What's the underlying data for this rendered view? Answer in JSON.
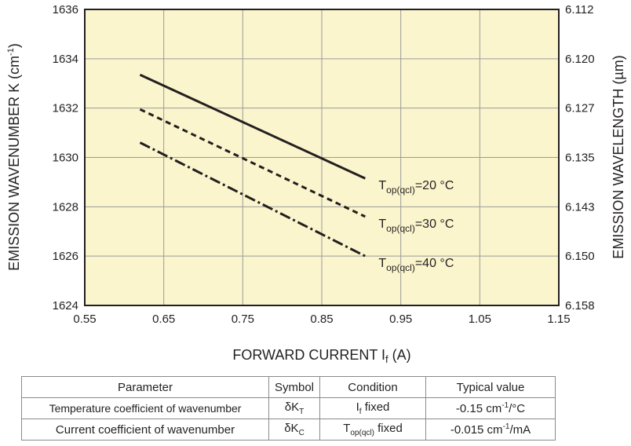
{
  "chart_data": {
    "type": "line",
    "xlabel": "FORWARD CURRENT",
    "xlabel_symbol": "I",
    "xlabel_symbol_sub": "f",
    "xlabel_unit": "(A)",
    "ylabel": "EMISSION WAVENUMBER K (cm",
    "ylabel_sup": "-1",
    "ylabel_end": ")",
    "y2label": "EMISSION WAVELENGTH (µm)",
    "xlim": [
      0.55,
      1.15
    ],
    "ylim": [
      1624,
      1636
    ],
    "xticks": [
      "0.55",
      "0.65",
      "0.75",
      "0.85",
      "0.95",
      "1.05",
      "1.15"
    ],
    "yticks": [
      "1624",
      "1626",
      "1628",
      "1630",
      "1632",
      "1634",
      "1636"
    ],
    "y2ticks": [
      "6.158",
      "6.150",
      "6.143",
      "6.135",
      "6.127",
      "6.120",
      "6.112"
    ],
    "grid": true,
    "background_color": "#fbf5cd",
    "series": [
      {
        "label_main": "T",
        "label_sub": "op(qcl)",
        "label_value": "=20 °C",
        "style": "solid",
        "x": [
          0.62,
          0.905
        ],
        "y": [
          1633.35,
          1629.15
        ]
      },
      {
        "label_main": "T",
        "label_sub": "op(qcl)",
        "label_value": "=30 °C",
        "style": "dashed",
        "x": [
          0.62,
          0.905
        ],
        "y": [
          1631.95,
          1627.6
        ]
      },
      {
        "label_main": "T",
        "label_sub": "op(qcl)",
        "label_value": "=40 °C",
        "style": "dashdot",
        "x": [
          0.62,
          0.905
        ],
        "y": [
          1630.6,
          1626.0
        ]
      }
    ]
  },
  "table": {
    "headers": [
      "Parameter",
      "Symbol",
      "Condition",
      "Typical value"
    ],
    "rows": [
      {
        "parameter": "Temperature coefficient of wavenumber",
        "symbol_main": "δK",
        "symbol_sub": "T",
        "condition_main": "I",
        "condition_sub": "f",
        "condition_end": " fixed",
        "value_main": "-0.15 cm",
        "value_sup": "-1",
        "value_end": "/°C"
      },
      {
        "parameter": "Current coefficient of wavenumber",
        "symbol_main": "δK",
        "symbol_sub": "C",
        "condition_main": "T",
        "condition_sub": "op(qcl)",
        "condition_end": " fixed",
        "value_main": "-0.015 cm",
        "value_sup": "-1",
        "value_end": "/mA"
      }
    ]
  }
}
